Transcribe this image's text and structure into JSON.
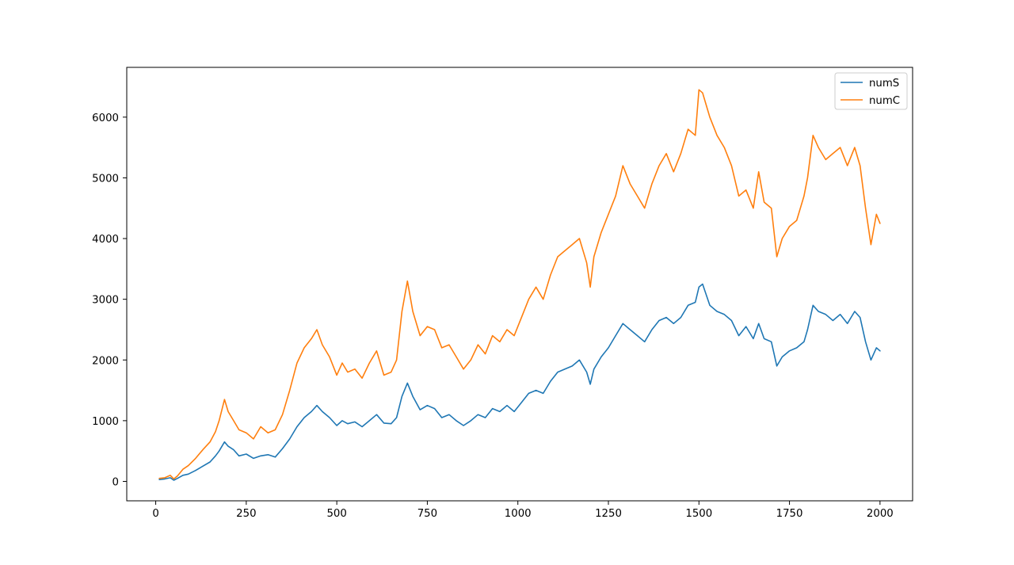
{
  "chart_data": {
    "type": "line",
    "title": "",
    "xlabel": "",
    "ylabel": "",
    "xlim": [
      -80,
      2090
    ],
    "ylim": [
      -320,
      6820
    ],
    "x_ticks": [
      0,
      250,
      500,
      750,
      1000,
      1250,
      1500,
      1750,
      2000
    ],
    "y_ticks": [
      0,
      1000,
      2000,
      3000,
      4000,
      5000,
      6000
    ],
    "x_tick_labels": [
      "0",
      "250",
      "500",
      "750",
      "1000",
      "1250",
      "1500",
      "1750",
      "2000"
    ],
    "y_tick_labels": [
      "0",
      "1000",
      "2000",
      "3000",
      "4000",
      "5000",
      "6000"
    ],
    "grid": false,
    "legend_position": "top-right",
    "series": [
      {
        "name": "numS",
        "color": "#1f77b4",
        "x": [
          10,
          25,
          40,
          50,
          60,
          75,
          90,
          110,
          130,
          150,
          165,
          175,
          190,
          200,
          215,
          230,
          250,
          270,
          290,
          310,
          330,
          350,
          370,
          390,
          410,
          430,
          445,
          460,
          480,
          500,
          515,
          530,
          550,
          570,
          590,
          610,
          630,
          650,
          665,
          680,
          695,
          710,
          730,
          750,
          770,
          790,
          810,
          830,
          850,
          870,
          890,
          910,
          930,
          950,
          970,
          990,
          1010,
          1030,
          1050,
          1070,
          1090,
          1110,
          1130,
          1150,
          1170,
          1190,
          1200,
          1210,
          1230,
          1250,
          1270,
          1290,
          1310,
          1330,
          1350,
          1370,
          1390,
          1410,
          1430,
          1450,
          1470,
          1490,
          1500,
          1510,
          1530,
          1550,
          1570,
          1590,
          1610,
          1630,
          1650,
          1665,
          1680,
          1700,
          1715,
          1730,
          1750,
          1770,
          1790,
          1800,
          1815,
          1830,
          1850,
          1870,
          1890,
          1910,
          1930,
          1945,
          1960,
          1975,
          1990,
          2000
        ],
        "y": [
          30,
          40,
          60,
          20,
          50,
          100,
          120,
          180,
          250,
          320,
          420,
          500,
          650,
          580,
          520,
          420,
          450,
          380,
          420,
          440,
          400,
          540,
          700,
          900,
          1050,
          1150,
          1250,
          1150,
          1050,
          920,
          1000,
          950,
          980,
          900,
          1000,
          1100,
          960,
          950,
          1050,
          1400,
          1620,
          1400,
          1180,
          1250,
          1200,
          1050,
          1100,
          1000,
          920,
          1000,
          1100,
          1050,
          1200,
          1150,
          1250,
          1150,
          1300,
          1450,
          1500,
          1450,
          1650,
          1800,
          1850,
          1900,
          2000,
          1800,
          1600,
          1850,
          2050,
          2200,
          2400,
          2600,
          2500,
          2400,
          2300,
          2500,
          2650,
          2700,
          2600,
          2700,
          2900,
          2950,
          3200,
          3250,
          2900,
          2800,
          2750,
          2650,
          2400,
          2550,
          2350,
          2600,
          2350,
          2300,
          1900,
          2050,
          2150,
          2200,
          2300,
          2500,
          2900,
          2800,
          2750,
          2650,
          2750,
          2600,
          2800,
          2700,
          2300,
          2000,
          2200,
          2150
        ]
      },
      {
        "name": "numC",
        "color": "#ff7f0e",
        "x": [
          10,
          25,
          40,
          50,
          60,
          75,
          90,
          110,
          130,
          150,
          165,
          175,
          190,
          200,
          215,
          230,
          250,
          270,
          290,
          310,
          330,
          350,
          370,
          390,
          410,
          430,
          445,
          460,
          480,
          500,
          515,
          530,
          550,
          570,
          590,
          610,
          630,
          650,
          665,
          680,
          695,
          710,
          730,
          750,
          770,
          790,
          810,
          830,
          850,
          870,
          890,
          910,
          930,
          950,
          970,
          990,
          1010,
          1030,
          1050,
          1070,
          1090,
          1110,
          1130,
          1150,
          1170,
          1190,
          1200,
          1210,
          1230,
          1250,
          1270,
          1290,
          1310,
          1330,
          1350,
          1370,
          1390,
          1410,
          1430,
          1450,
          1470,
          1490,
          1500,
          1510,
          1530,
          1550,
          1570,
          1590,
          1610,
          1630,
          1650,
          1665,
          1680,
          1700,
          1715,
          1730,
          1750,
          1770,
          1790,
          1800,
          1815,
          1830,
          1850,
          1870,
          1890,
          1910,
          1930,
          1945,
          1960,
          1975,
          1990,
          2000
        ],
        "y": [
          50,
          60,
          100,
          40,
          90,
          200,
          260,
          380,
          520,
          650,
          820,
          1000,
          1350,
          1150,
          1000,
          850,
          800,
          700,
          900,
          800,
          850,
          1100,
          1500,
          1950,
          2200,
          2350,
          2500,
          2250,
          2050,
          1750,
          1950,
          1800,
          1850,
          1700,
          1950,
          2150,
          1750,
          1800,
          2000,
          2800,
          3300,
          2800,
          2400,
          2550,
          2500,
          2200,
          2250,
          2050,
          1850,
          2000,
          2250,
          2100,
          2400,
          2300,
          2500,
          2400,
          2700,
          3000,
          3200,
          3000,
          3400,
          3700,
          3800,
          3900,
          4000,
          3600,
          3200,
          3700,
          4100,
          4400,
          4700,
          5200,
          4900,
          4700,
          4500,
          4900,
          5200,
          5400,
          5100,
          5400,
          5800,
          5700,
          6450,
          6400,
          6000,
          5700,
          5500,
          5200,
          4700,
          4800,
          4500,
          5100,
          4600,
          4500,
          3700,
          4000,
          4200,
          4300,
          4700,
          5000,
          5700,
          5500,
          5300,
          5400,
          5500,
          5200,
          5500,
          5200,
          4500,
          3900,
          4400,
          4250
        ]
      }
    ]
  }
}
